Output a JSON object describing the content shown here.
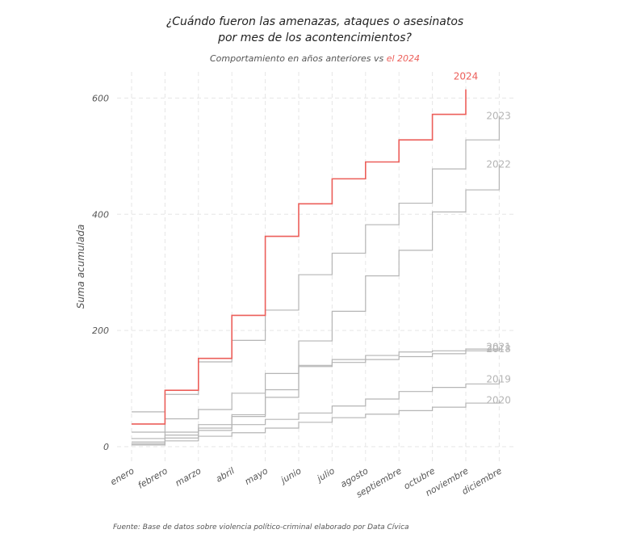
{
  "chart_data": {
    "type": "step",
    "title": [
      "¿Cuándo fueron las amenazas, ataques o asesinatos",
      "por mes de los acontencimientos?"
    ],
    "subtitle": "Comportamiento en años anteriores vs",
    "subtitle_highlight": "el 2024",
    "y_label": "Suma acumulada",
    "caption": "Fuente: Base de datos sobre violencia político-criminal elaborado por Data Cívica",
    "categories": [
      "enero",
      "febrero",
      "marzo",
      "abril",
      "mayo",
      "junio",
      "julio",
      "agosto",
      "septiembre",
      "octubre",
      "noviembre",
      "diciembre"
    ],
    "ylim": [
      -25,
      645
    ],
    "yticks": [
      0,
      200,
      400,
      600
    ],
    "grid": true,
    "series": [
      {
        "name": "2018",
        "color": "#b5b5b5",
        "values": [
          8,
          20,
          32,
          52,
          85,
          138,
          145,
          150,
          155,
          160,
          165,
          168
        ]
      },
      {
        "name": "2019",
        "color": "#b5b5b5",
        "values": [
          5,
          15,
          28,
          38,
          47,
          58,
          70,
          82,
          95,
          102,
          108,
          116
        ]
      },
      {
        "name": "2020",
        "color": "#b5b5b5",
        "values": [
          3,
          10,
          18,
          24,
          32,
          42,
          50,
          56,
          62,
          68,
          75,
          80
        ]
      },
      {
        "name": "2021",
        "color": "#b5b5b5",
        "values": [
          14,
          25,
          38,
          55,
          98,
          140,
          150,
          157,
          163,
          165,
          168,
          172
        ]
      },
      {
        "name": "2022",
        "color": "#b5b5b5",
        "values": [
          25,
          48,
          64,
          92,
          126,
          182,
          233,
          294,
          338,
          404,
          442,
          486
        ]
      },
      {
        "name": "2023",
        "color": "#b5b5b5",
        "values": [
          60,
          90,
          146,
          183,
          235,
          296,
          333,
          382,
          419,
          478,
          528,
          569
        ]
      },
      {
        "name": "2024",
        "color": "#ec5f5a",
        "values": [
          39,
          97,
          152,
          226,
          362,
          418,
          461,
          490,
          528,
          572,
          615,
          null
        ]
      }
    ]
  }
}
